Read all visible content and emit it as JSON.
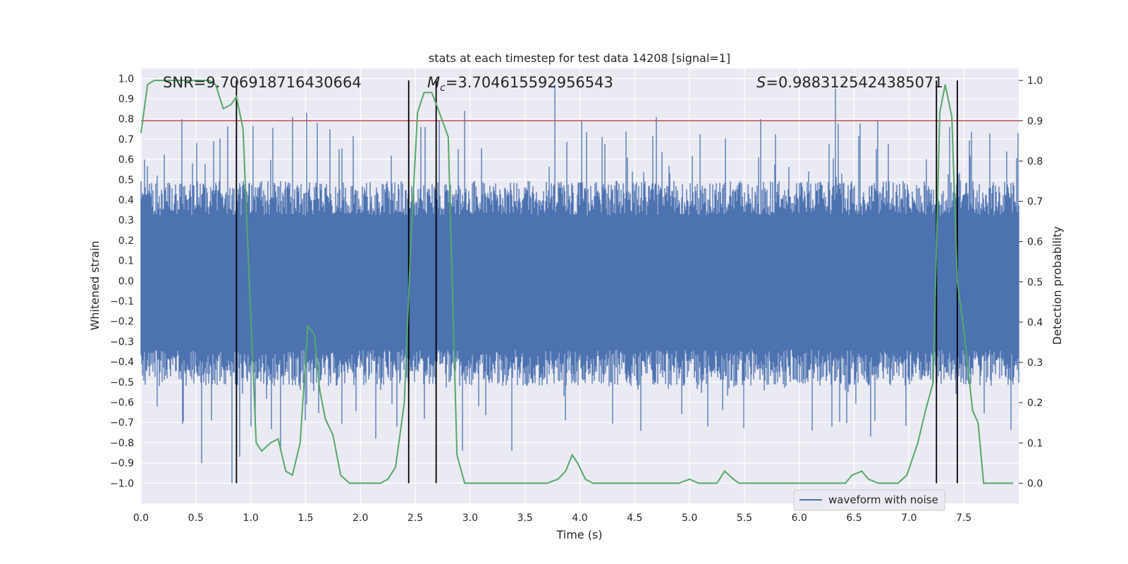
{
  "chart_data": {
    "type": "line",
    "title": "stats at each timestep for test data 14208 [signal=1]",
    "xlabel": "Time (s)",
    "ylabel_left": "Whitened strain",
    "ylabel_right": "Detection probability",
    "xlim": [
      0,
      8
    ],
    "ylim_left": [
      -1.1,
      1.05
    ],
    "ylim_right": [
      -0.05,
      1.03
    ],
    "x_ticks": [
      0.0,
      0.5,
      1.0,
      1.5,
      2.0,
      2.5,
      3.0,
      3.5,
      4.0,
      4.5,
      5.0,
      5.5,
      6.0,
      6.5,
      7.0,
      7.5
    ],
    "x_tick_labels": [
      "0.0",
      "0.5",
      "1.0",
      "1.5",
      "2.0",
      "2.5",
      "3.0",
      "3.5",
      "4.0",
      "4.5",
      "5.0",
      "5.5",
      "6.0",
      "6.5",
      "7.0",
      "7.5"
    ],
    "y_left_ticks": [
      1.0,
      0.9,
      0.8,
      0.7,
      0.6,
      0.5,
      0.4,
      0.3,
      0.2,
      0.1,
      0.0,
      -0.1,
      -0.2,
      -0.3,
      -0.4,
      -0.5,
      -0.6,
      -0.7,
      -0.8,
      -0.9,
      -1.0
    ],
    "y_left_tick_labels": [
      "1.0",
      "0.9",
      "0.8",
      "0.7",
      "0.6",
      "0.5",
      "0.4",
      "0.3",
      "0.2",
      "0.1",
      "0.0",
      "−0.1",
      "−0.2",
      "−0.3",
      "−0.4",
      "−0.5",
      "−0.6",
      "−0.7",
      "−0.8",
      "−0.9",
      "−1.0"
    ],
    "y_right_ticks": [
      1.0,
      0.9,
      0.8,
      0.7,
      0.6,
      0.5,
      0.4,
      0.3,
      0.2,
      0.1,
      0.0
    ],
    "y_right_tick_labels": [
      "1.0",
      "0.9",
      "0.8",
      "0.7",
      "0.6",
      "0.5",
      "0.4",
      "0.3",
      "0.2",
      "0.1",
      "0.0"
    ],
    "annotations": {
      "snr": "SNR=9.706918716430664",
      "mc_symbol": "M",
      "mc_sub": "c",
      "mc_value": "=3.704615592956543",
      "s_symbol": "S",
      "s_value": "=0.9883125424385071"
    },
    "legend": {
      "label": "waveform with noise",
      "position": "lower-right"
    },
    "threshold_line": {
      "value_right_axis": 0.9,
      "color": "#c44e52"
    },
    "vertical_lines_x": [
      0.87,
      2.44,
      2.69,
      7.25,
      7.44
    ],
    "waveform": {
      "name": "waveform with noise",
      "color": "#4c72b0",
      "core_range": [
        -0.4,
        0.38
      ],
      "spikes": [
        {
          "t": 0.55,
          "v": -0.9
        },
        {
          "t": 0.83,
          "v": -1.0
        },
        {
          "t": 0.87,
          "v": 0.72
        },
        {
          "t": 0.9,
          "v": -0.87
        },
        {
          "t": 1.0,
          "v": -0.72
        },
        {
          "t": 1.27,
          "v": -0.84
        },
        {
          "t": 1.38,
          "v": 0.81
        },
        {
          "t": 1.51,
          "v": 0.83
        },
        {
          "t": 1.72,
          "v": 0.75
        },
        {
          "t": 2.14,
          "v": -0.78
        },
        {
          "t": 2.55,
          "v": 0.76
        },
        {
          "t": 2.72,
          "v": 0.79
        },
        {
          "t": 2.93,
          "v": -0.84
        },
        {
          "t": 2.95,
          "v": 0.84
        },
        {
          "t": 3.38,
          "v": -0.84
        },
        {
          "t": 3.77,
          "v": 0.97
        },
        {
          "t": 4.7,
          "v": 0.81
        },
        {
          "t": 6.12,
          "v": -0.74
        },
        {
          "t": 6.33,
          "v": 0.95
        },
        {
          "t": 6.65,
          "v": -0.77
        },
        {
          "t": 7.37,
          "v": 0.76
        }
      ]
    },
    "detection_probability": {
      "color": "#55a868",
      "x": [
        0.0,
        0.06,
        0.12,
        0.25,
        0.45,
        0.62,
        0.68,
        0.75,
        0.82,
        0.87,
        0.93,
        0.98,
        1.05,
        1.1,
        1.18,
        1.25,
        1.32,
        1.38,
        1.45,
        1.52,
        1.58,
        1.63,
        1.68,
        1.75,
        1.82,
        1.9,
        2.05,
        2.18,
        2.25,
        2.32,
        2.4,
        2.46,
        2.52,
        2.58,
        2.65,
        2.72,
        2.8,
        2.88,
        2.95,
        3.1,
        3.5,
        3.7,
        3.8,
        3.87,
        3.93,
        3.98,
        4.05,
        4.12,
        4.2,
        4.5,
        4.9,
        5.0,
        5.08,
        5.2,
        5.25,
        5.32,
        5.4,
        5.45,
        5.6,
        6.2,
        6.42,
        6.48,
        6.57,
        6.63,
        6.72,
        6.9,
        6.98,
        7.08,
        7.15,
        7.22,
        7.28,
        7.33,
        7.39,
        7.44,
        7.5,
        7.58,
        7.63,
        7.68,
        7.75,
        7.95
      ],
      "y": [
        0.87,
        0.99,
        1.0,
        1.0,
        1.0,
        1.0,
        0.99,
        0.93,
        0.94,
        0.96,
        0.88,
        0.55,
        0.1,
        0.08,
        0.1,
        0.11,
        0.03,
        0.02,
        0.1,
        0.39,
        0.37,
        0.23,
        0.16,
        0.12,
        0.02,
        0.0,
        0.0,
        0.0,
        0.01,
        0.04,
        0.2,
        0.6,
        0.92,
        0.97,
        0.97,
        0.92,
        0.86,
        0.07,
        0.0,
        0.0,
        0.0,
        0.0,
        0.01,
        0.03,
        0.07,
        0.05,
        0.01,
        0.0,
        0.0,
        0.0,
        0.0,
        0.01,
        0.0,
        0.0,
        0.0,
        0.03,
        0.01,
        0.0,
        0.0,
        0.0,
        0.0,
        0.02,
        0.03,
        0.01,
        0.0,
        0.0,
        0.02,
        0.1,
        0.18,
        0.25,
        0.92,
        0.99,
        0.91,
        0.5,
        0.38,
        0.18,
        0.15,
        0.0,
        0.0,
        0.0
      ]
    }
  }
}
